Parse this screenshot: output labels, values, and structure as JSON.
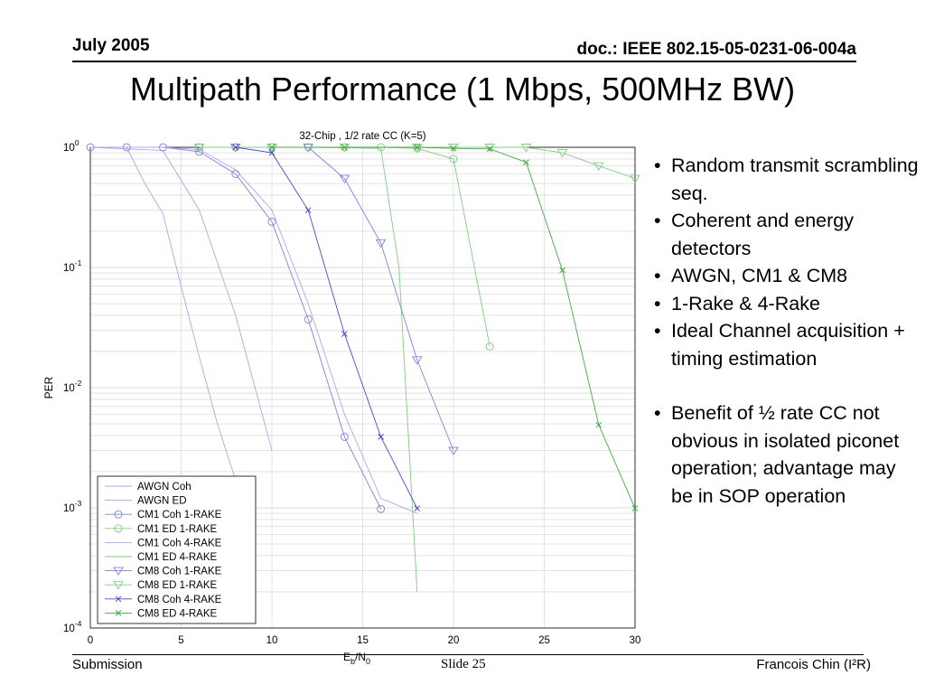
{
  "header": {
    "date": "July 2005",
    "doc_id": "doc.: IEEE 802.15-05-0231-06-004a"
  },
  "slide_title": "Multipath Performance (1 Mbps, 500MHz BW)",
  "bullets": [
    "Random transmit scrambling seq.",
    "Coherent and energy detectors",
    "AWGN, CM1 & CM8",
    "1-Rake & 4-Rake",
    " Ideal Channel acquisition + timing estimation",
    "Benefit of ½ rate CC not obvious in isolated piconet operation; advantage may be in SOP operation"
  ],
  "footer": {
    "left": "Submission",
    "center": "Slide 25",
    "right": "Francois Chin (I²R)"
  },
  "chart_data": {
    "type": "line",
    "title": "32-Chip , 1/2 rate CC (K=5)",
    "xlabel": "Eb/N0",
    "ylabel": "PER",
    "xlim": [
      0,
      30
    ],
    "ylim": [
      0.0001,
      1
    ],
    "yscale": "log",
    "grid": true,
    "legend_position": "bottom-left",
    "x_ticks": [
      "0",
      "5",
      "10",
      "15",
      "20",
      "25",
      "30"
    ],
    "y_ticks": [
      "10^0",
      "10^-1",
      "10^-2",
      "10^-3",
      "10^-4"
    ],
    "series": [
      {
        "name": "AWGN Coh",
        "color": "#a8a8ee",
        "marker": "none",
        "points": [
          [
            0,
            1
          ],
          [
            2,
            1
          ],
          [
            3,
            0.5
          ],
          [
            4,
            0.28
          ],
          [
            5,
            0.07
          ],
          [
            6,
            0.018
          ],
          [
            7,
            0.005
          ],
          [
            8,
            0.0017
          ]
        ]
      },
      {
        "name": "AWGN ED",
        "color": "#a8a8ee",
        "marker": "none",
        "points": [
          [
            0,
            1
          ],
          [
            4,
            0.94
          ],
          [
            6,
            0.3
          ],
          [
            8,
            0.04
          ],
          [
            10,
            0.003
          ]
        ]
      },
      {
        "name": "CM1 Coh 1-RAKE",
        "color": "#8080e0",
        "marker": "circle",
        "points": [
          [
            0,
            1
          ],
          [
            2,
            1
          ],
          [
            4,
            1
          ],
          [
            6,
            0.92
          ],
          [
            8,
            0.6
          ],
          [
            10,
            0.24
          ],
          [
            12,
            0.037
          ],
          [
            14,
            0.0039
          ],
          [
            16,
            0.00098
          ]
        ]
      },
      {
        "name": "CM1 ED 1-RAKE",
        "color": "#80cc80",
        "marker": "circle",
        "points": [
          [
            6,
            1
          ],
          [
            8,
            1
          ],
          [
            10,
            1
          ],
          [
            12,
            1
          ],
          [
            14,
            1
          ],
          [
            16,
            1
          ],
          [
            18,
            0.98
          ],
          [
            20,
            0.8
          ],
          [
            22,
            0.022
          ]
        ]
      },
      {
        "name": "CM1 Coh 4-RAKE",
        "color": "#a8a8ee",
        "marker": "none",
        "points": [
          [
            0,
            1
          ],
          [
            4,
            1
          ],
          [
            6,
            0.96
          ],
          [
            8,
            0.65
          ],
          [
            10,
            0.3
          ],
          [
            12,
            0.05
          ],
          [
            14,
            0.006
          ],
          [
            16,
            0.0012
          ],
          [
            18,
            0.0009
          ]
        ]
      },
      {
        "name": "CM1 ED 4-RAKE",
        "color": "#80cc80",
        "marker": "none",
        "points": [
          [
            8,
            1
          ],
          [
            12,
            1
          ],
          [
            16,
            0.98
          ],
          [
            17,
            0.1
          ],
          [
            18,
            0.0002
          ]
        ]
      },
      {
        "name": "CM8 Coh 1-RAKE",
        "color": "#8080e0",
        "marker": "triangle",
        "points": [
          [
            6,
            1
          ],
          [
            8,
            1
          ],
          [
            10,
            1
          ],
          [
            12,
            1
          ],
          [
            14,
            0.55
          ],
          [
            16,
            0.16
          ],
          [
            18,
            0.017
          ],
          [
            20,
            0.003
          ]
        ]
      },
      {
        "name": "CM8 ED 1-RAKE",
        "color": "#80cc80",
        "marker": "triangle",
        "points": [
          [
            6,
            1
          ],
          [
            10,
            1
          ],
          [
            14,
            1
          ],
          [
            18,
            1
          ],
          [
            20,
            1
          ],
          [
            22,
            1
          ],
          [
            24,
            1
          ],
          [
            26,
            0.9
          ],
          [
            28,
            0.7
          ],
          [
            30,
            0.55
          ]
        ]
      },
      {
        "name": "CM8 Coh 4-RAKE",
        "color": "#4a4acc",
        "marker": "xdot",
        "points": [
          [
            8,
            1
          ],
          [
            10,
            0.9
          ],
          [
            12,
            0.3
          ],
          [
            14,
            0.028
          ],
          [
            16,
            0.0039
          ],
          [
            18,
            0.00099
          ]
        ]
      },
      {
        "name": "CM8 ED 4-RAKE",
        "color": "#44aa44",
        "marker": "xdot",
        "points": [
          [
            10,
            1
          ],
          [
            14,
            1
          ],
          [
            18,
            1
          ],
          [
            20,
            0.98
          ],
          [
            22,
            0.97
          ],
          [
            24,
            0.75
          ],
          [
            26,
            0.095
          ],
          [
            28,
            0.0049
          ],
          [
            30,
            0.00099
          ]
        ]
      }
    ]
  }
}
